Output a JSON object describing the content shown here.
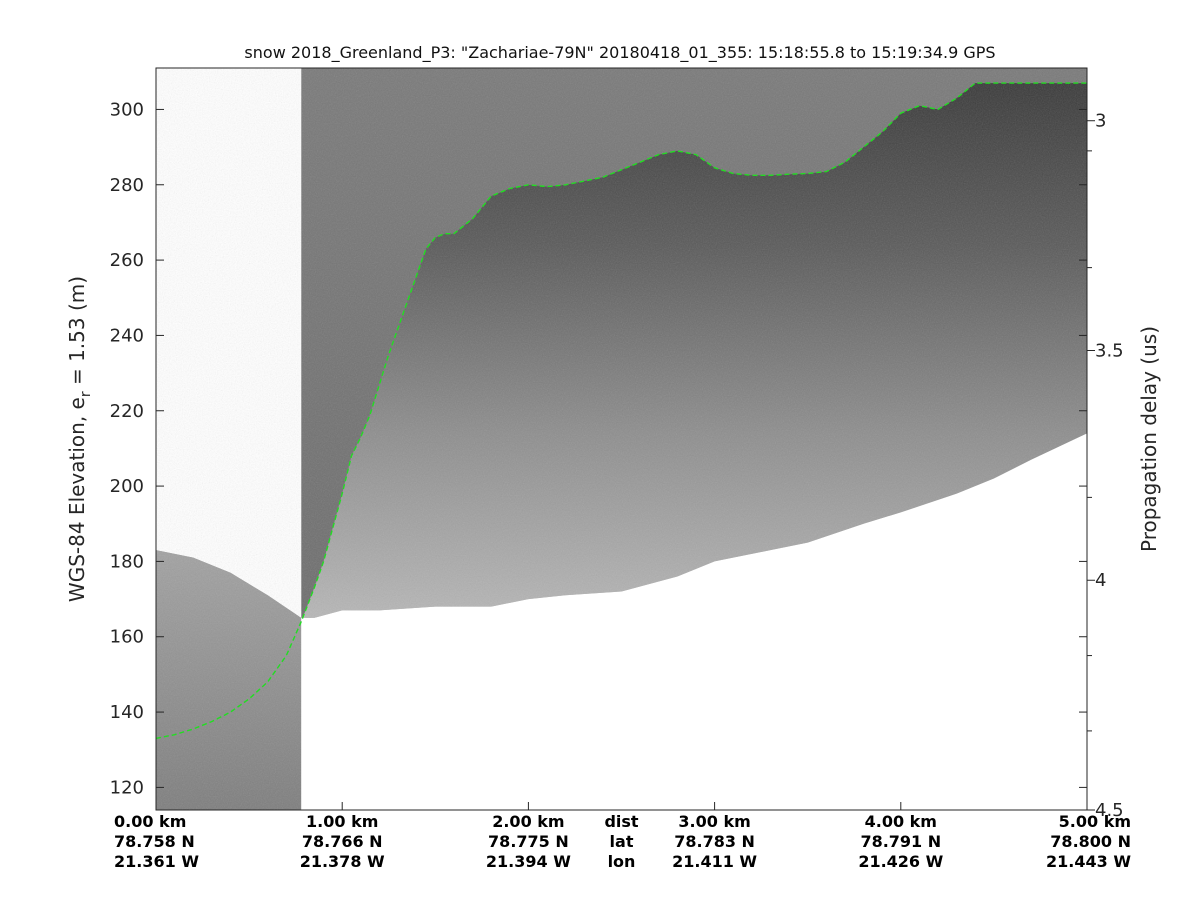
{
  "chart_data": {
    "type": "line",
    "title": "snow 2018_Greenland_P3: \"Zachariae-79N\"  20180418_01_355: 15:18:55.8 to 15:19:34.9 GPS",
    "ylabel": "WGS-84 Elevation, e",
    "ylabel_subscript": "r",
    "ylabel_suffix": " = 1.53 (m)",
    "ylabel_right": "Propagation delay (us)",
    "xlim": [
      0,
      5
    ],
    "ylim": [
      114,
      311
    ],
    "y_ticks": [
      120,
      140,
      160,
      180,
      200,
      220,
      240,
      260,
      280,
      300
    ],
    "right_ticks": [
      {
        "label": "3",
        "elevation": 297
      },
      {
        "label": "3.5",
        "elevation": 236
      },
      {
        "label": "4",
        "elevation": 175
      },
      {
        "label": "4.5",
        "elevation": 114
      }
    ],
    "right_minor_ticks": [
      289,
      258,
      197,
      155,
      135
    ],
    "bottom_labels": [
      {
        "dist": "0.00 km",
        "lat": "78.758 N",
        "lon": "21.361 W",
        "x": 0
      },
      {
        "dist": "1.00 km",
        "lat": "78.766 N",
        "lon": "21.378 W",
        "x": 1
      },
      {
        "dist": "2.00 km",
        "lat": "78.775 N",
        "lon": "21.394 W",
        "x": 2
      },
      {
        "dist": "3.00 km",
        "lat": "78.783 N",
        "lon": "21.411 W",
        "x": 3
      },
      {
        "dist": "4.00 km",
        "lat": "78.791 N",
        "lon": "21.426 W",
        "x": 4
      },
      {
        "dist": "5.00 km",
        "lat": "78.800 N",
        "lon": "21.443 W",
        "x": 5
      }
    ],
    "row_labels": {
      "dist": "dist",
      "lat": "lat",
      "lon": "lon",
      "x": 2.5
    },
    "surface_series": {
      "color": "#22dd22",
      "x": [
        0,
        0.1,
        0.2,
        0.3,
        0.4,
        0.5,
        0.6,
        0.7,
        0.78,
        0.85,
        0.9,
        0.95,
        1.0,
        1.05,
        1.1,
        1.15,
        1.2,
        1.25,
        1.3,
        1.35,
        1.4,
        1.45,
        1.5,
        1.55,
        1.6,
        1.7,
        1.8,
        1.9,
        2.0,
        2.1,
        2.2,
        2.3,
        2.4,
        2.5,
        2.6,
        2.7,
        2.8,
        2.9,
        3.0,
        3.1,
        3.2,
        3.3,
        3.4,
        3.5,
        3.6,
        3.7,
        3.8,
        3.9,
        4.0,
        4.1,
        4.2,
        4.3,
        4.4,
        4.5,
        4.6,
        4.7,
        4.8,
        4.9,
        5.0
      ],
      "y": [
        133,
        134,
        135.5,
        137.5,
        140,
        143.5,
        148,
        155,
        164,
        173,
        180,
        189,
        198,
        208,
        213,
        219,
        227,
        235,
        242,
        249,
        256,
        263,
        266,
        267,
        267,
        271,
        277,
        279,
        280,
        279.5,
        280,
        281,
        282,
        284,
        286,
        288,
        289,
        288,
        284.5,
        283,
        282.5,
        282.5,
        282.8,
        283,
        283.5,
        286,
        290,
        294,
        299,
        301,
        300,
        303,
        307,
        307,
        307,
        307,
        307,
        307,
        307
      ]
    },
    "data_end_series": {
      "x": [
        0.78,
        0.85,
        1.0,
        1.2,
        1.5,
        1.8,
        2.0,
        2.2,
        2.5,
        2.8,
        3.0,
        3.3,
        3.5,
        3.8,
        4.0,
        4.3,
        4.5,
        4.7,
        5.0
      ],
      "y": [
        165,
        165,
        167,
        167,
        168,
        168,
        170,
        171,
        172,
        176,
        180,
        183,
        185,
        190,
        193,
        198,
        202,
        207,
        214
      ]
    },
    "bedrock_series": {
      "x": [
        0,
        0.2,
        0.4,
        0.6,
        0.78
      ],
      "y": [
        183,
        181,
        177,
        171,
        165
      ]
    },
    "blank_region": {
      "x": [
        0,
        0.78
      ],
      "elevation_above": 183
    },
    "colors": {
      "background": "#ffffff",
      "echogram_dark": "#3d3d3d",
      "echogram_mid": "#7a7a7a",
      "echogram_light": "#bcbcbc",
      "axis": "#262626"
    },
    "grid": false
  }
}
